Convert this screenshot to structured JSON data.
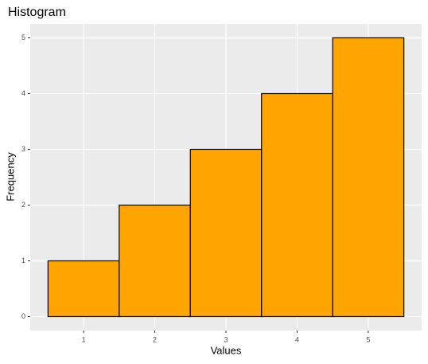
{
  "chart_data": {
    "type": "histogram",
    "title": "Histogram",
    "x_label": "Values",
    "y_label": "Frequency",
    "bins": [
      0.5,
      1.5,
      2.5,
      3.5,
      4.5,
      5.5
    ],
    "values": [
      1,
      2,
      3,
      4,
      5
    ],
    "color": "#ffa500",
    "xlim": [
      0.25,
      5.75
    ],
    "xticks": [
      1,
      2,
      3,
      4,
      5
    ],
    "ylim": [
      -0.25,
      5.25
    ],
    "yticks": [
      0,
      1,
      2,
      3,
      4,
      5
    ],
    "grid": true
  }
}
